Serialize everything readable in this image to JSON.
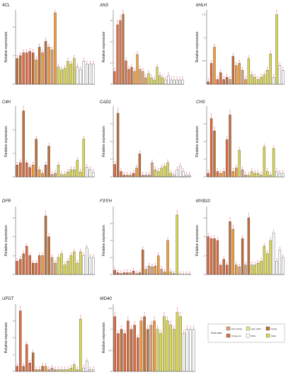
{
  "colors": {
    "light_red": "#d9a27d",
    "red_yellow": "#c2703a",
    "orange": "#f39a37",
    "orange_red": "#e36a3f",
    "yellow": "#dcd84f",
    "white": "#ffffff",
    "error_bar": "#e0485a",
    "axis": "#444444"
  },
  "y_axis_label": "Relative expression",
  "legend": {
    "title": "Fruit color",
    "items": [
      {
        "label": "Light_Orange",
        "color": "#d9a27d"
      },
      {
        "label": "Light_yellow",
        "color": "#e8e693"
      },
      {
        "label": "Orange",
        "color": "#c2703a"
      },
      {
        "label": "Orange_red",
        "color": "#e36a3f"
      },
      {
        "label": "White",
        "color": "#ffffff"
      },
      {
        "label": "Yellow",
        "color": "#dcd84f"
      }
    ]
  },
  "chart_data": [
    {
      "type": "bar",
      "title": "4CL",
      "ylabel": "Relative expression",
      "ylim": [
        0,
        2.6
      ],
      "yticks": [
        0,
        1,
        2
      ],
      "values": [
        0.9,
        1.0,
        1.1,
        1.1,
        1.15,
        1.1,
        0.85,
        1.3,
        1.1,
        1.5,
        1.3,
        1.2,
        2.5,
        0.6,
        0.5,
        0.55,
        0.8,
        0.7,
        0.9,
        0.6,
        0.5,
        0.8,
        0.7,
        0.7,
        0.7
      ],
      "colors": [
        "red_yellow",
        "red_yellow",
        "orange_red",
        "orange_red",
        "orange_red",
        "red_yellow",
        "orange",
        "red_yellow",
        "orange",
        "red_yellow",
        "orange",
        "light_red",
        "orange",
        "yellow",
        "yellow",
        "yellow",
        "yellow",
        "yellow",
        "yellow",
        "white",
        "white",
        "white",
        "white",
        "white",
        "white"
      ]
    },
    {
      "type": "bar",
      "title": "AN3",
      "ylabel": "Relative expression",
      "ylim": [
        0,
        3.5
      ],
      "yticks": [
        0,
        1,
        2,
        3
      ],
      "values": [
        0.6,
        2.8,
        3.0,
        3.3,
        1.1,
        0.7,
        0.8,
        0.6,
        1.4,
        0.7,
        0.6,
        0.3,
        0.5,
        0.3,
        0.2,
        0.8,
        0.4,
        0.3,
        0.2,
        0.4,
        0.2,
        0.2,
        0.2,
        0.2,
        0.2
      ],
      "colors": [
        "orange_red",
        "orange_red",
        "orange_red",
        "red_yellow",
        "orange_red",
        "orange_red",
        "red_yellow",
        "orange",
        "orange",
        "orange",
        "light_red",
        "orange",
        "yellow",
        "yellow",
        "yellow",
        "yellow",
        "yellow",
        "yellow",
        "white",
        "white",
        "white",
        "white",
        "white",
        "white",
        "white"
      ]
    },
    {
      "type": "bar",
      "title": "bHLH",
      "ylabel": "Relative expression",
      "ylim": [
        0,
        1.6
      ],
      "yticks": [
        0.5,
        1.0,
        1.5
      ],
      "values": [
        0.05,
        0.45,
        0.8,
        0.1,
        0.25,
        0.1,
        0.15,
        0.1,
        0.6,
        0.4,
        0.45,
        0.3,
        0.1,
        0.55,
        0.2,
        0.15,
        0.1,
        0.15,
        0.2,
        0.3,
        0.65,
        0.15,
        1.5,
        0.4,
        0.3
      ],
      "colors": [
        "red_yellow",
        "orange_red",
        "orange",
        "orange_red",
        "orange_red",
        "red_yellow",
        "red_yellow",
        "light_red",
        "red_yellow",
        "orange",
        "orange",
        "light_red",
        "orange",
        "yellow",
        "yellow",
        "yellow",
        "yellow",
        "yellow",
        "yellow",
        "yellow",
        "yellow",
        "white",
        "yellow",
        "white",
        "white"
      ]
    },
    {
      "type": "bar",
      "title": "C4H",
      "ylabel": "Relative expression",
      "ylim": [
        0,
        3
      ],
      "yticks": [
        0,
        1,
        2
      ],
      "values": [
        0.5,
        0.6,
        2.8,
        0.6,
        0.4,
        0.5,
        1.6,
        0.3,
        0.15,
        0.5,
        1.3,
        0.1,
        0.15,
        0.5,
        0.1,
        0.1,
        0.2,
        0.3,
        0.3,
        0.7,
        0.2,
        1.6,
        0.4,
        0.3,
        0.2
      ],
      "colors": [
        "red_yellow",
        "orange_red",
        "red_yellow",
        "orange_red",
        "orange_red",
        "orange",
        "red_yellow",
        "orange",
        "orange",
        "red_yellow",
        "red_yellow",
        "light_red",
        "light_red",
        "yellow",
        "yellow",
        "yellow",
        "yellow",
        "yellow",
        "yellow",
        "yellow",
        "yellow",
        "yellow",
        "white",
        "white",
        "white"
      ]
    },
    {
      "type": "bar",
      "title": "CAD1",
      "ylabel": "Relative expression",
      "ylim": [
        0,
        4
      ],
      "yticks": [
        0,
        1,
        2,
        3
      ],
      "values": [
        0.7,
        3.6,
        0.3,
        0.1,
        0.1,
        0.1,
        0.2,
        0.5,
        1.3,
        0.1,
        0.1,
        0.1,
        0.8,
        0.4,
        0.3,
        0.5,
        0.6,
        0.8,
        0.2,
        0.1,
        0.4,
        0.6,
        0.3,
        0.1,
        0.1
      ],
      "colors": [
        "orange_red",
        "red_yellow",
        "orange_red",
        "orange_red",
        "orange",
        "orange",
        "red_yellow",
        "orange",
        "red_yellow",
        "light_red",
        "light_red",
        "light_red",
        "light_red",
        "yellow",
        "yellow",
        "yellow",
        "yellow",
        "yellow",
        "yellow",
        "white",
        "white",
        "white",
        "white",
        "white",
        "white"
      ]
    },
    {
      "type": "bar",
      "title": "CHS",
      "ylabel": "Relative expression",
      "ylim": [
        0,
        4
      ],
      "yticks": [
        0,
        1,
        2,
        3
      ],
      "values": [
        0.2,
        3.3,
        2.6,
        0.3,
        0.2,
        0.3,
        2.1,
        3.5,
        0.3,
        0.5,
        1.5,
        0.4,
        0.1,
        0.1,
        0.3,
        0.2,
        0.2,
        0.1,
        1.7,
        0.3,
        0.1,
        1.6,
        0.3,
        0.2,
        0.2
      ],
      "colors": [
        "orange_red",
        "orange_red",
        "red_yellow",
        "orange_red",
        "orange",
        "orange",
        "orange_red",
        "red_yellow",
        "orange",
        "orange",
        "yellow",
        "light_red",
        "light_red",
        "yellow",
        "yellow",
        "yellow",
        "yellow",
        "yellow",
        "yellow",
        "yellow",
        "yellow",
        "yellow",
        "white",
        "white",
        "white"
      ]
    },
    {
      "type": "bar",
      "title": "DFR",
      "ylabel": "Relative expression",
      "ylim": [
        0,
        3.6
      ],
      "yticks": [
        0,
        1,
        2,
        3
      ],
      "values": [
        0.7,
        0.8,
        1.1,
        1.5,
        1.0,
        0.6,
        0.6,
        1.0,
        1.0,
        3.1,
        2.0,
        0.9,
        0.6,
        0.9,
        1.1,
        0.5,
        0.7,
        1.0,
        1.2,
        0.6,
        1.2,
        1.0,
        1.4,
        0.9,
        0.9
      ],
      "colors": [
        "orange_red",
        "orange_red",
        "red_yellow",
        "orange_red",
        "orange_red",
        "red_yellow",
        "orange_red",
        "orange_red",
        "orange",
        "red_yellow",
        "red_yellow",
        "light_red",
        "light_red",
        "yellow",
        "yellow",
        "yellow",
        "yellow",
        "yellow",
        "yellow",
        "yellow",
        "yellow",
        "white",
        "white",
        "white",
        "white"
      ]
    },
    {
      "type": "bar",
      "title": "F3'5'H",
      "ylabel": "Relative expression",
      "ylim": [
        0,
        8
      ],
      "yticks": [
        0,
        2,
        4,
        6
      ],
      "values": [
        0.5,
        0.2,
        0.1,
        0.2,
        0.2,
        0.2,
        0.4,
        0.1,
        0.2,
        2.9,
        0.6,
        1.0,
        0.9,
        1.0,
        2.2,
        0.6,
        0.3,
        4.0,
        0.3,
        0.1,
        7.0,
        0.0,
        0.0,
        0.0,
        0.0
      ],
      "colors": [
        "orange_red",
        "orange_red",
        "orange_red",
        "red_yellow",
        "orange_red",
        "orange",
        "orange_red",
        "orange",
        "red_yellow",
        "red_yellow",
        "orange",
        "light_red",
        "light_red",
        "orange",
        "orange",
        "light_red",
        "orange",
        "orange",
        "yellow",
        "yellow",
        "yellow",
        "white",
        "white",
        "white",
        "white"
      ]
    },
    {
      "type": "bar",
      "title": "MYB10",
      "ylabel": "Relative expression",
      "ylim": [
        0,
        3.6
      ],
      "yticks": [
        0,
        1,
        2,
        3
      ],
      "values": [
        2.0,
        1.9,
        1.9,
        1.8,
        0.5,
        0.8,
        0.5,
        2.8,
        2.4,
        0.5,
        0.4,
        1.9,
        0.5,
        3.0,
        0.5,
        0.5,
        0.6,
        0.7,
        1.5,
        1.1,
        1.8,
        2.2,
        0.7,
        1.3,
        0.9
      ],
      "colors": [
        "orange_red",
        "orange_red",
        "red_yellow",
        "orange_red",
        "orange_red",
        "red_yellow",
        "orange_red",
        "red_yellow",
        "orange",
        "orange",
        "light_red",
        "red_yellow",
        "light_red",
        "red_yellow",
        "yellow",
        "yellow",
        "yellow",
        "yellow",
        "yellow",
        "yellow",
        "yellow",
        "white",
        "white",
        "white",
        "white"
      ]
    },
    {
      "type": "bar",
      "title": "UFGT",
      "ylabel": "Relative expression",
      "ylim": [
        0,
        4
      ],
      "yticks": [
        0,
        1,
        2,
        3
      ],
      "values": [
        0.3,
        3.6,
        0.3,
        1.6,
        0.5,
        1.1,
        0.1,
        0.1,
        0.3,
        0.3,
        0.1,
        0.2,
        0.1,
        0.1,
        0.1,
        0.1,
        0.1,
        0.2,
        0.4,
        0.1,
        3.1,
        0.2,
        0.6,
        0.1,
        0.1
      ],
      "colors": [
        "orange_red",
        "orange_red",
        "red_yellow",
        "orange_red",
        "orange_red",
        "red_yellow",
        "orange",
        "orange",
        "red_yellow",
        "orange",
        "light_red",
        "light_red",
        "light_red",
        "yellow",
        "yellow",
        "yellow",
        "yellow",
        "yellow",
        "yellow",
        "yellow",
        "yellow",
        "white",
        "white",
        "white",
        "white"
      ]
    },
    {
      "type": "bar",
      "title": "WD40",
      "ylabel": "Relative expression",
      "ylim": [
        0,
        1.6
      ],
      "yticks": [
        0,
        0.5,
        1.0,
        1.5
      ],
      "values": [
        1.3,
        0.9,
        1.0,
        0.9,
        1.2,
        1.0,
        1.1,
        0.8,
        1.2,
        1.3,
        1.0,
        1.1,
        1.2,
        1.0,
        0.9,
        1.3,
        1.2,
        1.1,
        1.0,
        1.4,
        1.3,
        0.9,
        1.0,
        1.0,
        1.0
      ],
      "colors": [
        "orange_red",
        "orange_red",
        "red_yellow",
        "orange_red",
        "orange_red",
        "red_yellow",
        "orange_red",
        "orange_red",
        "orange",
        "red_yellow",
        "red_yellow",
        "light_red",
        "orange",
        "yellow",
        "yellow",
        "yellow",
        "yellow",
        "yellow",
        "yellow",
        "yellow",
        "yellow",
        "white",
        "white",
        "white",
        "white"
      ]
    }
  ]
}
